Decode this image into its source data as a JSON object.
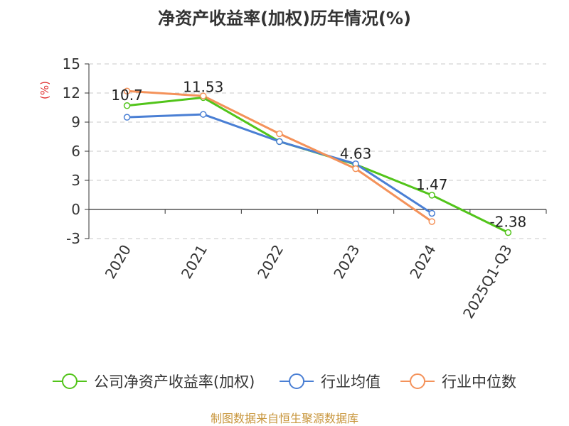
{
  "chart_data": {
    "type": "line",
    "title": "净资产收益率(加权)历年情况(%)",
    "ylabel": "(%)",
    "ylim": [
      -3,
      15
    ],
    "yticks": [
      15,
      12,
      9,
      6,
      3,
      0,
      -3
    ],
    "grid": true,
    "legend_position": "bottom",
    "categories": [
      "2020",
      "2021",
      "2022",
      "2023",
      "2024",
      "2025Q1-Q3"
    ],
    "series": [
      {
        "name": "公司净资产收益率(加权)",
        "color": "#52c41a",
        "values": [
          10.7,
          11.53,
          7.0,
          4.63,
          1.47,
          -2.38
        ],
        "labels": [
          "10.7",
          "11.53",
          "",
          "4.63",
          "1.47",
          "-2.38"
        ]
      },
      {
        "name": "行业均值",
        "color": "#4a7fd4",
        "values": [
          9.5,
          9.8,
          7.0,
          4.7,
          -0.4,
          null
        ],
        "labels": [
          "",
          "",
          "",
          "",
          "",
          ""
        ]
      },
      {
        "name": "行业中位数",
        "color": "#f4925a",
        "values": [
          12.2,
          11.7,
          7.8,
          4.2,
          -1.25,
          null
        ],
        "labels": [
          "",
          "",
          "",
          "",
          "",
          ""
        ]
      }
    ]
  },
  "source_text": "制图数据来自恒生聚源数据库"
}
